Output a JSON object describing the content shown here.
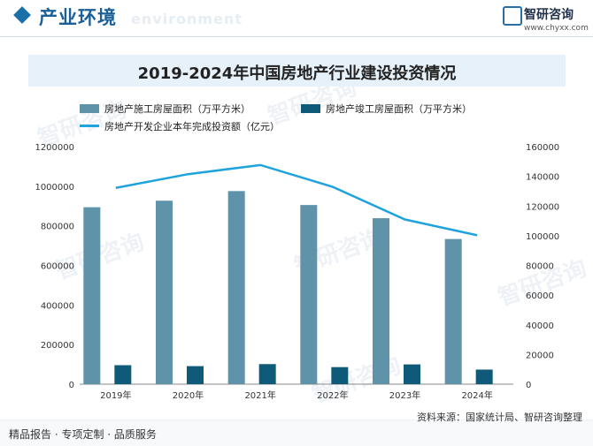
{
  "header": {
    "section_title": "产业环境",
    "section_title_en": "environment",
    "logo_name": "智研咨询",
    "logo_url": "www.chyxx.com"
  },
  "watermark": "智研咨询",
  "chart_data": {
    "type": "bar",
    "title": "2019-2024年中国房地产行业建设投资情况",
    "categories": [
      "2019年",
      "2020年",
      "2021年",
      "2022年",
      "2023年",
      "2024年"
    ],
    "series": [
      {
        "name": "房地产施工房屋面积（万平方米）",
        "type": "bar",
        "axis": "left",
        "color": "#5e93aa",
        "values": [
          893821,
          926759,
          975387,
          904999,
          838364,
          733247
        ]
      },
      {
        "name": "房地产竣工房屋面积（万平方米）",
        "type": "bar",
        "axis": "left",
        "color": "#0f5a78",
        "values": [
          95942,
          91218,
          101412,
          86222,
          99831,
          73743
        ]
      },
      {
        "name": "房地产开发企业本年完成投资额（亿元）",
        "type": "line",
        "axis": "right",
        "color": "#1fa3dc",
        "values": [
          132194,
          141443,
          147602,
          132895,
          110913,
          100280
        ]
      }
    ],
    "y_left": {
      "min": 0,
      "max": 1200000,
      "ticks": [
        "0",
        "200000",
        "400000",
        "600000",
        "800000",
        "1000000",
        "1200000"
      ]
    },
    "y_right": {
      "min": 0,
      "max": 160000,
      "ticks": [
        "0",
        "20000",
        "40000",
        "60000",
        "80000",
        "100000",
        "120000",
        "140000",
        "160000"
      ]
    },
    "grid": false,
    "legend_position": "top-left"
  },
  "footer": {
    "left_text": "精品报告 · 专项定制 · 品质服务",
    "source_text": "资料来源：国家统计局、智研咨询整理"
  }
}
